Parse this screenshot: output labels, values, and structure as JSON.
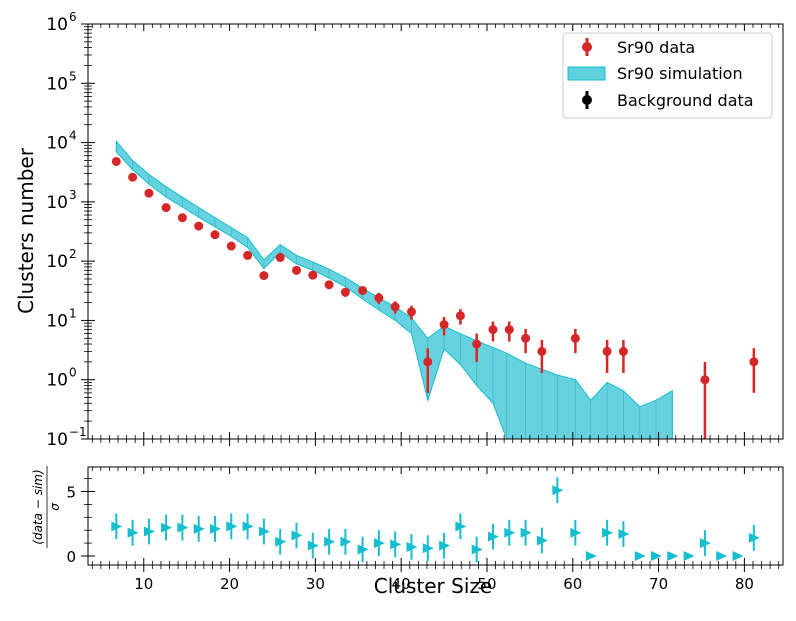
{
  "chart_data": [
    {
      "type": "scatter",
      "panel": "main",
      "ylabel": "Clusters number",
      "yscale": "log",
      "ylim": [
        0.1,
        1000000
      ],
      "xlim": [
        3.5,
        84.5
      ],
      "y_tick_labels": [
        "10",
        "10",
        "10",
        "10",
        "10",
        "10",
        "10",
        "10"
      ],
      "y_tick_exponents": [
        "−1",
        "0",
        "1",
        "2",
        "3",
        "4",
        "5",
        "6"
      ],
      "y_tick_values": [
        0.1,
        1,
        10,
        100,
        1000,
        10000,
        100000,
        1000000
      ],
      "legend": {
        "placement": "top-right",
        "entries": [
          "Sr90 data",
          "Sr90 simulation",
          "Background data"
        ]
      },
      "colors": {
        "data": "#d62728",
        "simulation_fill": "#5fd0dd",
        "simulation_edge": "#17becf",
        "background": "#000000"
      },
      "series": [
        {
          "name": "Sr90 data",
          "points": [
            {
              "x": 6.8,
              "y": 4800,
              "lo": 4650,
              "hi": 4950
            },
            {
              "x": 8.7,
              "y": 2600,
              "lo": 2500,
              "hi": 2700
            },
            {
              "x": 10.6,
              "y": 1400,
              "lo": 1340,
              "hi": 1460
            },
            {
              "x": 12.6,
              "y": 800,
              "lo": 770,
              "hi": 830
            },
            {
              "x": 14.5,
              "y": 540,
              "lo": 517,
              "hi": 563
            },
            {
              "x": 16.4,
              "y": 390,
              "lo": 370,
              "hi": 410
            },
            {
              "x": 18.3,
              "y": 280,
              "lo": 263,
              "hi": 297
            },
            {
              "x": 20.2,
              "y": 180,
              "lo": 167,
              "hi": 193
            },
            {
              "x": 22.1,
              "y": 125,
              "lo": 114,
              "hi": 136
            },
            {
              "x": 24.0,
              "y": 57,
              "lo": 50,
              "hi": 64
            },
            {
              "x": 25.9,
              "y": 115,
              "lo": 104,
              "hi": 126
            },
            {
              "x": 27.8,
              "y": 70,
              "lo": 62,
              "hi": 78
            },
            {
              "x": 29.7,
              "y": 58,
              "lo": 51,
              "hi": 65
            },
            {
              "x": 31.6,
              "y": 40,
              "lo": 34,
              "hi": 46
            },
            {
              "x": 33.5,
              "y": 30,
              "lo": 25,
              "hi": 35
            },
            {
              "x": 35.5,
              "y": 32,
              "lo": 27,
              "hi": 37
            },
            {
              "x": 37.4,
              "y": 24,
              "lo": 19,
              "hi": 29
            },
            {
              "x": 39.3,
              "y": 17,
              "lo": 13,
              "hi": 21
            },
            {
              "x": 41.2,
              "y": 14,
              "lo": 10.3,
              "hi": 17.7
            },
            {
              "x": 43.1,
              "y": 2,
              "lo": 0.6,
              "hi": 3.4
            },
            {
              "x": 45.0,
              "y": 8.5,
              "lo": 5.6,
              "hi": 11.4
            },
            {
              "x": 46.9,
              "y": 12,
              "lo": 8.5,
              "hi": 15.5
            },
            {
              "x": 48.8,
              "y": 4,
              "lo": 2.0,
              "hi": 6.0
            },
            {
              "x": 50.7,
              "y": 7,
              "lo": 4.4,
              "hi": 9.6
            },
            {
              "x": 52.6,
              "y": 7,
              "lo": 4.4,
              "hi": 9.6
            },
            {
              "x": 54.5,
              "y": 5,
              "lo": 2.8,
              "hi": 7.2
            },
            {
              "x": 56.4,
              "y": 3,
              "lo": 1.3,
              "hi": 4.7
            },
            {
              "x": 60.3,
              "y": 5,
              "lo": 2.8,
              "hi": 7.2
            },
            {
              "x": 64.0,
              "y": 3,
              "lo": 1.3,
              "hi": 4.7
            },
            {
              "x": 65.9,
              "y": 3,
              "lo": 1.3,
              "hi": 4.7
            },
            {
              "x": 75.4,
              "y": 1,
              "lo": 0.05,
              "hi": 2.0
            },
            {
              "x": 81.1,
              "y": 2,
              "lo": 0.6,
              "hi": 3.4
            }
          ]
        },
        {
          "name": "Sr90 simulation",
          "band": [
            {
              "x": 6.8,
              "lo": 7000,
              "hi": 10500
            },
            {
              "x": 8.7,
              "lo": 3500,
              "hi": 5000
            },
            {
              "x": 10.6,
              "lo": 2000,
              "hi": 2900
            },
            {
              "x": 12.6,
              "lo": 1200,
              "hi": 1800
            },
            {
              "x": 14.5,
              "lo": 820,
              "hi": 1200
            },
            {
              "x": 16.4,
              "lo": 550,
              "hi": 800
            },
            {
              "x": 18.3,
              "lo": 380,
              "hi": 540
            },
            {
              "x": 20.2,
              "lo": 260,
              "hi": 370
            },
            {
              "x": 22.1,
              "lo": 170,
              "hi": 250
            },
            {
              "x": 24.0,
              "lo": 75,
              "hi": 105
            },
            {
              "x": 25.9,
              "lo": 140,
              "hi": 190
            },
            {
              "x": 27.8,
              "lo": 90,
              "hi": 125
            },
            {
              "x": 29.7,
              "lo": 70,
              "hi": 97
            },
            {
              "x": 31.6,
              "lo": 52,
              "hi": 73
            },
            {
              "x": 33.5,
              "lo": 37,
              "hi": 53
            },
            {
              "x": 35.5,
              "lo": 23,
              "hi": 35
            },
            {
              "x": 37.4,
              "lo": 15,
              "hi": 24
            },
            {
              "x": 39.3,
              "lo": 10,
              "hi": 17
            },
            {
              "x": 41.2,
              "lo": 6,
              "hi": 11
            },
            {
              "x": 43.1,
              "lo": 0.45,
              "hi": 5
            },
            {
              "x": 45.0,
              "lo": 3.3,
              "hi": 8
            },
            {
              "x": 46.9,
              "lo": 1.8,
              "hi": 6
            },
            {
              "x": 48.8,
              "lo": 0.8,
              "hi": 4.5
            },
            {
              "x": 50.7,
              "lo": 0.4,
              "hi": 3.5
            },
            {
              "x": 52.3,
              "lo": 0.1,
              "hi": 2.8
            },
            {
              "x": 54.5,
              "lo": 0.1,
              "hi": 1.9
            },
            {
              "x": 56.4,
              "lo": 0.1,
              "hi": 1.5
            },
            {
              "x": 58.2,
              "lo": 0.1,
              "hi": 1.2
            },
            {
              "x": 60.3,
              "lo": 0.1,
              "hi": 1.0
            },
            {
              "x": 62.1,
              "lo": 0.1,
              "hi": 0.45
            },
            {
              "x": 64.0,
              "lo": 0.1,
              "hi": 0.9
            },
            {
              "x": 65.9,
              "lo": 0.1,
              "hi": 0.65
            },
            {
              "x": 67.8,
              "lo": 0.1,
              "hi": 0.35
            },
            {
              "x": 69.7,
              "lo": 0.1,
              "hi": 0.45
            },
            {
              "x": 71.6,
              "lo": 0.1,
              "hi": 0.65
            }
          ]
        }
      ]
    },
    {
      "type": "scatter",
      "panel": "ratio",
      "xlabel": "Cluster Size",
      "ylabel": "(data − sim) / σ",
      "ylabel_numerator": "(data − sim)",
      "ylabel_denominator": "σ",
      "xlim": [
        3.5,
        84.5
      ],
      "ylim": [
        -0.7,
        6.9
      ],
      "x_ticks": [
        10,
        20,
        30,
        40,
        50,
        60,
        70,
        80
      ],
      "x_tick_labels": [
        "10",
        "20",
        "30",
        "40",
        "50",
        "60",
        "70",
        "80"
      ],
      "y_ticks": [
        0,
        5
      ],
      "y_tick_labels": [
        "0",
        "5"
      ],
      "series": [
        {
          "name": "residual",
          "points": [
            {
              "x": 6.8,
              "y": 2.3,
              "err": 1.0
            },
            {
              "x": 8.7,
              "y": 1.8,
              "err": 1.0
            },
            {
              "x": 10.6,
              "y": 1.9,
              "err": 1.0
            },
            {
              "x": 12.6,
              "y": 2.2,
              "err": 1.0
            },
            {
              "x": 14.5,
              "y": 2.2,
              "err": 1.0
            },
            {
              "x": 16.4,
              "y": 2.1,
              "err": 1.0
            },
            {
              "x": 18.3,
              "y": 2.1,
              "err": 1.0
            },
            {
              "x": 20.2,
              "y": 2.3,
              "err": 1.0
            },
            {
              "x": 22.1,
              "y": 2.3,
              "err": 1.0
            },
            {
              "x": 24.0,
              "y": 1.9,
              "err": 1.0
            },
            {
              "x": 25.9,
              "y": 1.1,
              "err": 1.0
            },
            {
              "x": 27.8,
              "y": 1.6,
              "err": 1.0
            },
            {
              "x": 29.7,
              "y": 0.8,
              "err": 1.0
            },
            {
              "x": 31.6,
              "y": 1.1,
              "err": 1.0
            },
            {
              "x": 33.5,
              "y": 1.1,
              "err": 1.0
            },
            {
              "x": 35.5,
              "y": 0.5,
              "err": 1.0
            },
            {
              "x": 37.4,
              "y": 1.0,
              "err": 1.0
            },
            {
              "x": 39.3,
              "y": 0.9,
              "err": 1.0
            },
            {
              "x": 41.2,
              "y": 0.7,
              "err": 1.0
            },
            {
              "x": 43.1,
              "y": 0.6,
              "err": 1.0
            },
            {
              "x": 45.0,
              "y": 0.8,
              "err": 1.0
            },
            {
              "x": 46.9,
              "y": 2.3,
              "err": 1.0
            },
            {
              "x": 48.8,
              "y": 0.5,
              "err": 1.0
            },
            {
              "x": 50.7,
              "y": 1.5,
              "err": 1.0
            },
            {
              "x": 52.6,
              "y": 1.8,
              "err": 1.0
            },
            {
              "x": 54.5,
              "y": 1.8,
              "err": 1.0
            },
            {
              "x": 56.4,
              "y": 1.2,
              "err": 1.0
            },
            {
              "x": 58.2,
              "y": 5.1,
              "err": 1.0
            },
            {
              "x": 60.3,
              "y": 1.8,
              "err": 1.0
            },
            {
              "x": 62.1,
              "y": 0.0,
              "err": 0.0
            },
            {
              "x": 64.0,
              "y": 1.8,
              "err": 1.0
            },
            {
              "x": 65.9,
              "y": 1.7,
              "err": 1.0
            },
            {
              "x": 67.8,
              "y": 0.0,
              "err": 0.0
            },
            {
              "x": 69.7,
              "y": 0.0,
              "err": 0.0
            },
            {
              "x": 71.6,
              "y": 0.0,
              "err": 0.0
            },
            {
              "x": 73.5,
              "y": 0.0,
              "err": 0.0
            },
            {
              "x": 75.4,
              "y": 1.0,
              "err": 1.0
            },
            {
              "x": 77.3,
              "y": 0.0,
              "err": 0.0
            },
            {
              "x": 79.2,
              "y": 0.0,
              "err": 0.0
            },
            {
              "x": 81.1,
              "y": 1.4,
              "err": 1.0
            }
          ]
        }
      ],
      "colors": {
        "marker": "#17becf"
      }
    }
  ]
}
